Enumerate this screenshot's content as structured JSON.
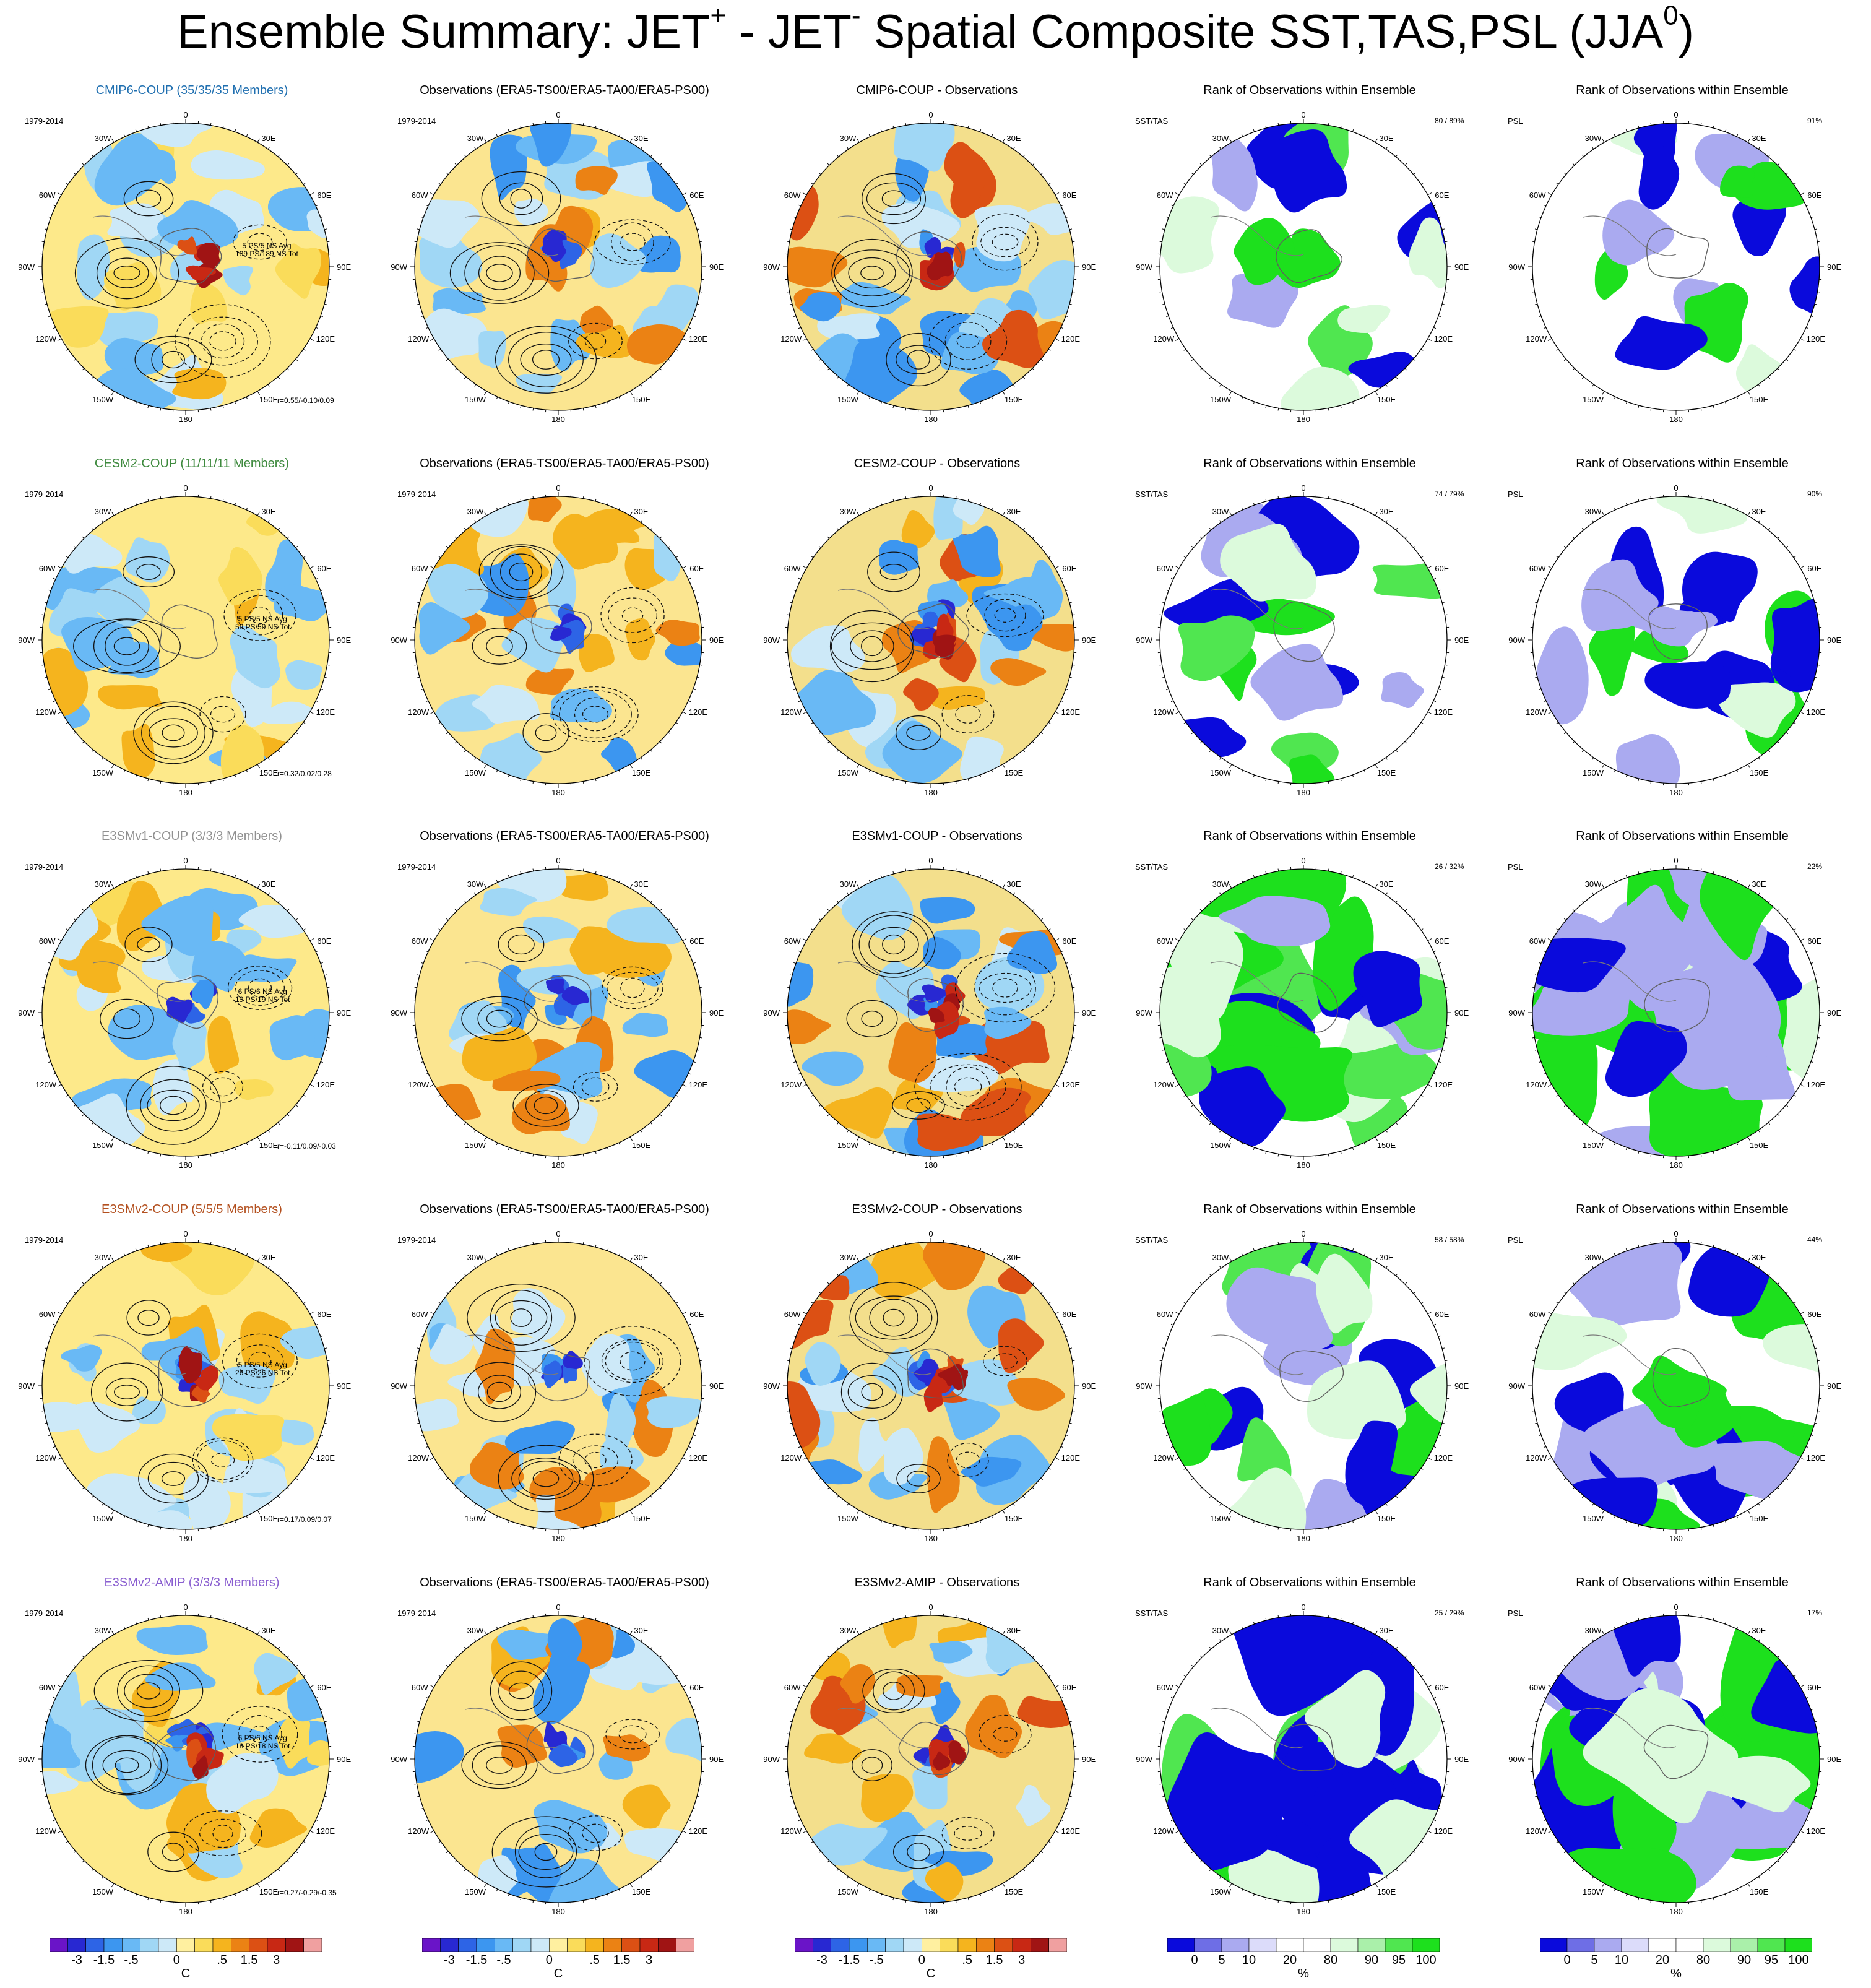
{
  "header": {
    "title_parts": [
      "Ensemble Summary: JET",
      "+",
      " - JET",
      "-",
      " Spatial Composite SST,TAS,PSL (JJA",
      "0",
      ")"
    ]
  },
  "axis_labels": {
    "top": "0",
    "bottom": "180",
    "left_upper": "30W",
    "left_mid_upper": "60W",
    "left_mid": "90W",
    "left_mid_lower": "120W",
    "left_lower": "150W",
    "right_upper": "30E",
    "right_mid_upper": "60E",
    "right_mid": "90E",
    "right_mid_lower": "120E",
    "right_lower": "150E"
  },
  "period": "1979-2014",
  "observations_title": "Observations (ERA5-TS00/ERA5-TA00/ERA5-PS00)",
  "rank_title": "Rank of Observations within Ensemble",
  "rank_var_sst": "SST/TAS",
  "rank_var_psl": "PSL",
  "colors": {
    "model_blue": "#1f6fb0",
    "model_green": "#3e8a3e",
    "model_gray": "#909090",
    "model_brown": "#b3501f",
    "model_purple": "#8a5fd0",
    "rank_low": "#0a0adc",
    "rank_high": "#1de01d"
  },
  "rows": [
    {
      "model_title": "CMIP6-COUP (35/35/35 Members)",
      "title_color": "#1f6fb0",
      "diff_title": "CMIP6-COUP - Observations",
      "info_1": "5 PS/5 NS Avg",
      "info_2": "189 PS/189 NS Tot",
      "r_stat": "r=0.55/-0.10/0.09",
      "rank_sst_pct": "80 /  89%",
      "rank_psl_pct": "91%"
    },
    {
      "model_title": "CESM2-COUP (11/11/11 Members)",
      "title_color": "#3e8a3e",
      "diff_title": "CESM2-COUP - Observations",
      "info_1": "5 PS/5 NS Avg",
      "info_2": "59 PS/59 NS Tot",
      "r_stat": "r=0.32/0.02/0.28",
      "rank_sst_pct": "74 /  79%",
      "rank_psl_pct": "90%"
    },
    {
      "model_title": "E3SMv1-COUP (3/3/3 Members)",
      "title_color": "#909090",
      "diff_title": "E3SMv1-COUP - Observations",
      "info_1": "6 PS/6 NS Avg",
      "info_2": "19 PS/19 NS Tot",
      "r_stat": "r=-0.11/0.09/-0.03",
      "rank_sst_pct": "26 /  32%",
      "rank_psl_pct": "22%"
    },
    {
      "model_title": "E3SMv2-COUP (5/5/5 Members)",
      "title_color": "#b3501f",
      "diff_title": "E3SMv2-COUP - Observations",
      "info_1": "5 PS/5 NS Avg",
      "info_2": "26 PS/26 NS Tot",
      "r_stat": "r=0.17/0.09/0.07",
      "rank_sst_pct": "58 /  58%",
      "rank_psl_pct": "44%"
    },
    {
      "model_title": "E3SMv2-AMIP (3/3/3 Members)",
      "title_color": "#8a5fd0",
      "diff_title": "E3SMv2-AMIP - Observations",
      "info_1": "6 PS/6 NS Avg",
      "info_2": "18 PS/18 NS Tot",
      "r_stat": "r=0.27/-0.29/-0.35",
      "rank_sst_pct": "25 /  29%",
      "rank_psl_pct": "17%"
    }
  ],
  "temp_colorbar": {
    "unit": "C",
    "colors": [
      "#6a14c8",
      "#2828d2",
      "#2d64e6",
      "#3c96f0",
      "#69b9f5",
      "#a0d7f5",
      "#cde9f8",
      "#fff0a0",
      "#fadc5a",
      "#f5b41e",
      "#eb8214",
      "#dc5014",
      "#c82814",
      "#a01414",
      "#f0a0a0"
    ],
    "labels": [
      "-3",
      "-1.5",
      "-.5",
      "0",
      ".5",
      "1.5",
      "3"
    ]
  },
  "rank_colorbar": {
    "unit": "%",
    "colors": [
      "#0a0adc",
      "#6e6ee6",
      "#aaaaf0",
      "#dcdcfa",
      "#ffffff",
      "#ffffff",
      "#dcfadc",
      "#aaf0aa",
      "#50e650",
      "#1de01d"
    ],
    "labels": [
      "0",
      "5",
      "10",
      "20",
      "80",
      "90",
      "95",
      "100"
    ]
  },
  "chart_data": [
    {
      "type": "heatmap",
      "title": "Ensemble Summary: JET+ - JET- Spatial Composite SST,TAS,PSL (JJA0)",
      "panels": "5 rows x 5 columns of south-polar stereographic maps",
      "columns": [
        "Model ensemble composite (SST/TAS shaded, PSL contours)",
        "Observations (ERA5-TS00/ERA5-TA00/ERA5-PS00)",
        "Model - Observations",
        "Rank of Observations within Ensemble (SST/TAS)",
        "Rank of Observations within Ensemble (PSL)"
      ],
      "units": "C",
      "color_levels": [
        -3,
        -2.5,
        -2,
        -1.5,
        -1,
        -0.5,
        -0.25,
        0,
        0.25,
        0.5,
        1,
        1.5,
        2,
        2.5,
        3
      ]
    },
    {
      "type": "heatmap",
      "title": "Rank of Observations within Ensemble",
      "units": "%",
      "color_levels": [
        0,
        5,
        10,
        20,
        80,
        90,
        95,
        100
      ],
      "rank_sst_tas_pct": [
        [
          80,
          89
        ],
        [
          74,
          79
        ],
        [
          26,
          32
        ],
        [
          58,
          58
        ],
        [
          25,
          29
        ]
      ],
      "rank_psl_pct": [
        91,
        90,
        22,
        44,
        17
      ]
    }
  ]
}
